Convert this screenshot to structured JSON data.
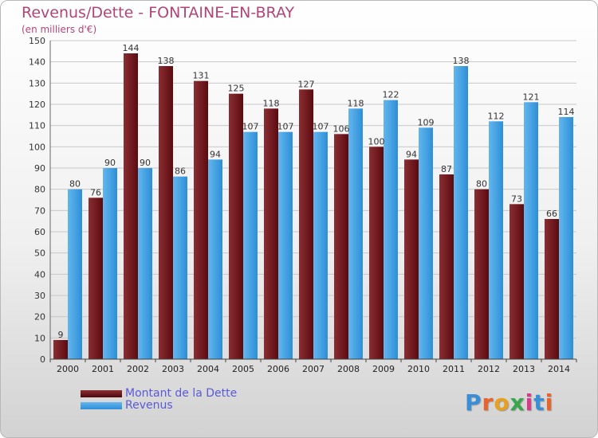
{
  "title": "Revenus/Dette - FONTAINE-EN-BRAY",
  "subtitle": "(en milliers d'€)",
  "logo_text": "Proxiti",
  "colors": {
    "dette": "#6e1216",
    "revenus": "#3c9ee2",
    "title": "#b0457a",
    "legend_text": "#5a5ad8"
  },
  "chart_data": {
    "type": "bar",
    "categories": [
      "2000",
      "2001",
      "2002",
      "2003",
      "2004",
      "2005",
      "2006",
      "2007",
      "2008",
      "2009",
      "2010",
      "2011",
      "2012",
      "2013",
      "2014"
    ],
    "series": [
      {
        "name": "Montant de la Dette",
        "values": [
          9,
          76,
          144,
          138,
          131,
          125,
          118,
          127,
          106,
          100,
          94,
          87,
          80,
          73,
          66
        ]
      },
      {
        "name": "Revenus",
        "values": [
          80,
          90,
          90,
          86,
          94,
          107,
          107,
          107,
          118,
          122,
          109,
          138,
          112,
          121,
          114
        ]
      }
    ],
    "ylim": [
      0,
      150
    ],
    "yticks": [
      0,
      10,
      20,
      30,
      40,
      50,
      60,
      70,
      80,
      90,
      100,
      110,
      120,
      130,
      140,
      150
    ],
    "grid": true,
    "legend_position": "bottom-left"
  }
}
